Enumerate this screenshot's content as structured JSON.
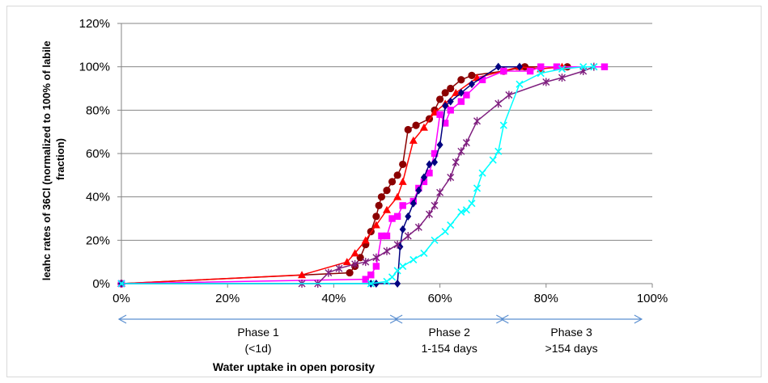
{
  "chart_data": {
    "type": "line",
    "title": "",
    "xlabel": "Water uptake in open porosity",
    "ylabel_lines": [
      "leahc rates of 36Cl (normalized to 100% of labile",
      "fraction)"
    ],
    "xlim": [
      0,
      1.0
    ],
    "ylim": [
      0,
      1.2
    ],
    "x_ticks": [
      0,
      0.2,
      0.4,
      0.6,
      0.8,
      1.0
    ],
    "x_tick_labels": [
      "0%",
      "20%",
      "40%",
      "60%",
      "80%",
      "100%"
    ],
    "y_ticks": [
      0,
      0.2,
      0.4,
      0.6,
      0.8,
      1.0,
      1.2
    ],
    "y_tick_labels": [
      "0%",
      "20%",
      "40%",
      "60%",
      "80%",
      "100%",
      "120%"
    ],
    "grid": "horizontal",
    "legend": "none",
    "phases": [
      {
        "lines": [
          "Phase 1",
          "(<1d)"
        ],
        "from": 0,
        "to": 0.52
      },
      {
        "lines": [
          "Phase 2",
          "1-154 days"
        ],
        "from": 0.52,
        "to": 0.72
      },
      {
        "lines": [
          "Phase 3",
          ">154 days"
        ],
        "from": 0.72,
        "to": 0.98
      }
    ],
    "series": [
      {
        "color": "#8B0000",
        "marker": "circle",
        "points": [
          [
            0,
            0
          ],
          [
            0.43,
            0.05
          ],
          [
            0.44,
            0.08
          ],
          [
            0.45,
            0.12
          ],
          [
            0.46,
            0.18
          ],
          [
            0.47,
            0.24
          ],
          [
            0.48,
            0.31
          ],
          [
            0.485,
            0.36
          ],
          [
            0.49,
            0.4
          ],
          [
            0.5,
            0.43
          ],
          [
            0.51,
            0.47
          ],
          [
            0.52,
            0.5
          ],
          [
            0.53,
            0.55
          ],
          [
            0.54,
            0.71
          ],
          [
            0.555,
            0.73
          ],
          [
            0.58,
            0.76
          ],
          [
            0.59,
            0.8
          ],
          [
            0.6,
            0.85
          ],
          [
            0.61,
            0.88
          ],
          [
            0.62,
            0.9
          ],
          [
            0.64,
            0.94
          ],
          [
            0.66,
            0.96
          ],
          [
            0.72,
            0.98
          ],
          [
            0.76,
            1.0
          ],
          [
            0.84,
            1.0
          ]
        ]
      },
      {
        "color": "#FF0000",
        "marker": "triangle",
        "points": [
          [
            0,
            0
          ],
          [
            0.34,
            0.04
          ],
          [
            0.425,
            0.1
          ],
          [
            0.44,
            0.14
          ],
          [
            0.46,
            0.2
          ],
          [
            0.48,
            0.27
          ],
          [
            0.5,
            0.34
          ],
          [
            0.52,
            0.4
          ],
          [
            0.53,
            0.47
          ],
          [
            0.55,
            0.66
          ],
          [
            0.57,
            0.72
          ],
          [
            0.59,
            0.79
          ],
          [
            0.61,
            0.83
          ],
          [
            0.63,
            0.88
          ],
          [
            0.67,
            0.95
          ],
          [
            0.75,
            1.0
          ],
          [
            0.79,
            0.99
          ],
          [
            0.83,
            1.0
          ]
        ]
      },
      {
        "color": "#FF00FF",
        "marker": "square",
        "points": [
          [
            0,
            0
          ],
          [
            0.46,
            0.02
          ],
          [
            0.47,
            0.04
          ],
          [
            0.48,
            0.08
          ],
          [
            0.49,
            0.22
          ],
          [
            0.5,
            0.22
          ],
          [
            0.51,
            0.3
          ],
          [
            0.52,
            0.31
          ],
          [
            0.53,
            0.36
          ],
          [
            0.55,
            0.38
          ],
          [
            0.56,
            0.44
          ],
          [
            0.57,
            0.47
          ],
          [
            0.58,
            0.51
          ],
          [
            0.59,
            0.6
          ],
          [
            0.6,
            0.78
          ],
          [
            0.61,
            0.74
          ],
          [
            0.62,
            0.8
          ],
          [
            0.64,
            0.84
          ],
          [
            0.65,
            0.87
          ],
          [
            0.68,
            0.94
          ],
          [
            0.72,
            0.98
          ],
          [
            0.77,
            0.98
          ],
          [
            0.79,
            1.0
          ],
          [
            0.82,
            1.0
          ],
          [
            0.91,
            1.0
          ]
        ]
      },
      {
        "color": "#000080",
        "marker": "diamond",
        "points": [
          [
            0,
            0
          ],
          [
            0.47,
            0
          ],
          [
            0.48,
            0
          ],
          [
            0.52,
            0
          ],
          [
            0.525,
            0.17
          ],
          [
            0.53,
            0.25
          ],
          [
            0.54,
            0.31
          ],
          [
            0.55,
            0.37
          ],
          [
            0.56,
            0.43
          ],
          [
            0.57,
            0.49
          ],
          [
            0.58,
            0.55
          ],
          [
            0.59,
            0.56
          ],
          [
            0.6,
            0.64
          ],
          [
            0.61,
            0.82
          ],
          [
            0.62,
            0.84
          ],
          [
            0.64,
            0.88
          ],
          [
            0.66,
            0.92
          ],
          [
            0.71,
            1.0
          ],
          [
            0.75,
            1.0
          ]
        ]
      },
      {
        "color": "#7F1F7F",
        "marker": "star",
        "points": [
          [
            0,
            0
          ],
          [
            0.34,
            0
          ],
          [
            0.37,
            0
          ],
          [
            0.39,
            0.05
          ],
          [
            0.41,
            0.07
          ],
          [
            0.44,
            0.09
          ],
          [
            0.46,
            0.1
          ],
          [
            0.48,
            0.12
          ],
          [
            0.5,
            0.15
          ],
          [
            0.52,
            0.18
          ],
          [
            0.54,
            0.22
          ],
          [
            0.56,
            0.26
          ],
          [
            0.58,
            0.32
          ],
          [
            0.59,
            0.36
          ],
          [
            0.6,
            0.42
          ],
          [
            0.62,
            0.49
          ],
          [
            0.63,
            0.56
          ],
          [
            0.64,
            0.61
          ],
          [
            0.65,
            0.65
          ],
          [
            0.67,
            0.75
          ],
          [
            0.71,
            0.83
          ],
          [
            0.73,
            0.87
          ],
          [
            0.8,
            0.93
          ],
          [
            0.83,
            0.95
          ],
          [
            0.87,
            0.98
          ],
          [
            0.89,
            1.0
          ]
        ]
      },
      {
        "color": "#00FFFF",
        "marker": "x",
        "points": [
          [
            0,
            0
          ],
          [
            0.47,
            0
          ],
          [
            0.5,
            0.01
          ],
          [
            0.51,
            0.03
          ],
          [
            0.52,
            0.06
          ],
          [
            0.53,
            0.08
          ],
          [
            0.55,
            0.11
          ],
          [
            0.57,
            0.14
          ],
          [
            0.59,
            0.2
          ],
          [
            0.61,
            0.24
          ],
          [
            0.62,
            0.27
          ],
          [
            0.64,
            0.33
          ],
          [
            0.65,
            0.34
          ],
          [
            0.66,
            0.37
          ],
          [
            0.67,
            0.44
          ],
          [
            0.68,
            0.51
          ],
          [
            0.7,
            0.57
          ],
          [
            0.71,
            0.61
          ],
          [
            0.72,
            0.73
          ],
          [
            0.75,
            0.92
          ],
          [
            0.79,
            0.97
          ],
          [
            0.83,
            0.99
          ],
          [
            0.87,
            1.0
          ],
          [
            0.89,
            1.0
          ]
        ]
      }
    ]
  }
}
